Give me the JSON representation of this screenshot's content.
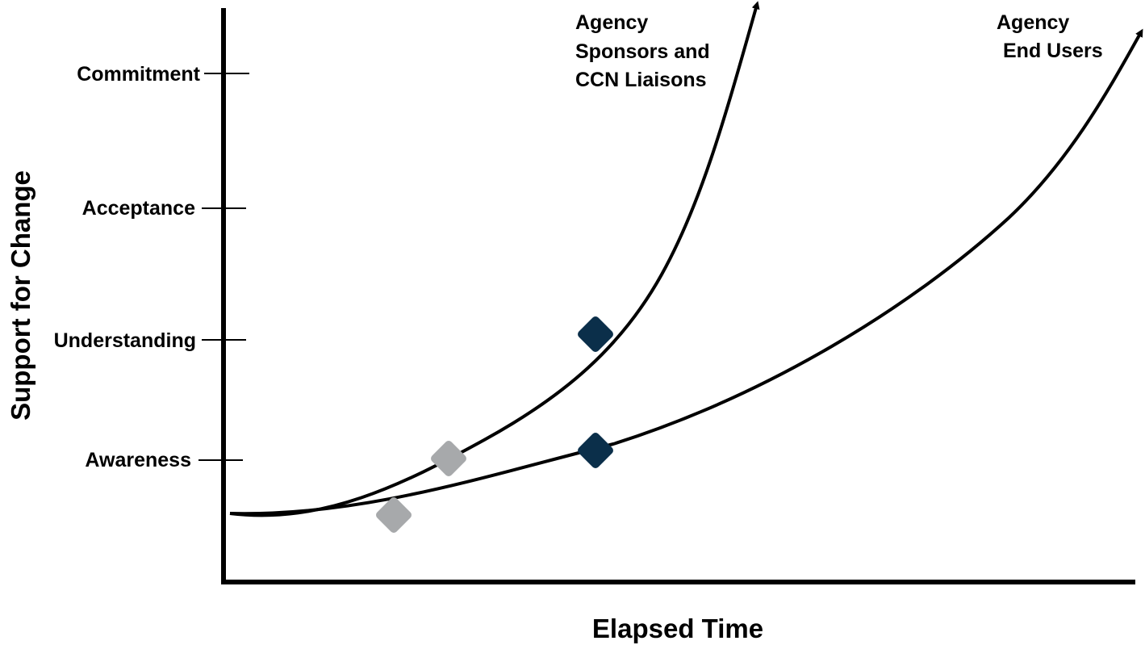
{
  "axes": {
    "y_title": "Support for Change",
    "x_title": "Elapsed Time"
  },
  "levels": [
    "Commitment",
    "Acceptance",
    "Understanding",
    "Awareness"
  ],
  "curves": [
    {
      "id": "sponsors",
      "label_lines": [
        "Agency",
        "Sponsors and",
        "CCN Liaisons"
      ]
    },
    {
      "id": "end-users",
      "label_lines": [
        "Agency",
        "End Users"
      ]
    }
  ],
  "colors": {
    "line": "#000000",
    "marker_past": "#a7a9ab",
    "marker_current": "#0b2f4a"
  }
}
